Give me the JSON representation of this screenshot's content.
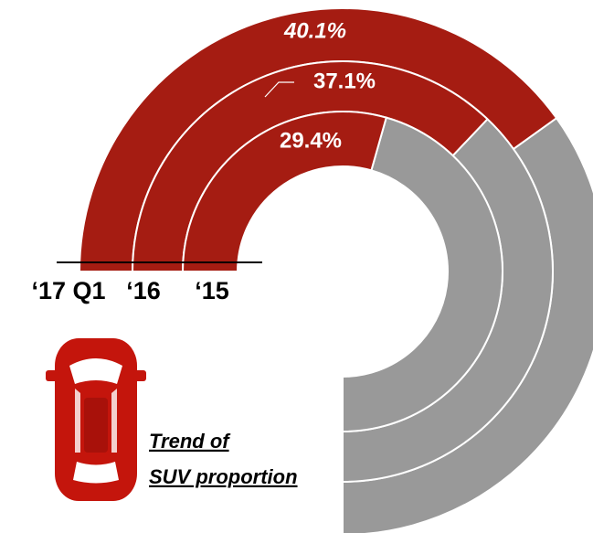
{
  "chart_data": {
    "type": "radial_bar",
    "categories": [
      "‘17 Q1",
      "‘16",
      "‘15"
    ],
    "values": [
      40.1,
      37.1,
      29.4
    ],
    "value_labels": [
      "40.1%",
      "37.1%",
      "29.4%"
    ],
    "color": "#a51c12",
    "rest_color": "#999999",
    "annotation": [
      "Trend of ",
      "SUV proportion"
    ]
  }
}
